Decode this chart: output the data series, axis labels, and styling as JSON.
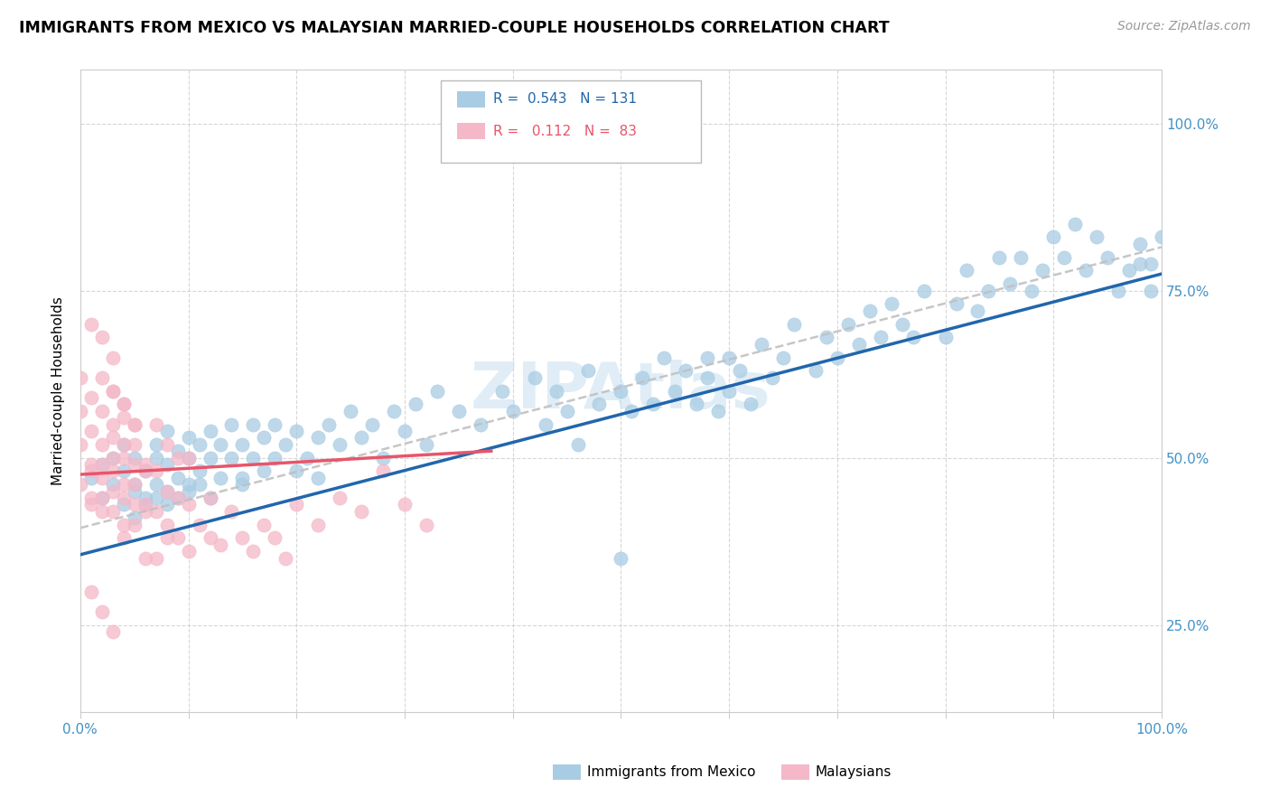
{
  "title": "IMMIGRANTS FROM MEXICO VS MALAYSIAN MARRIED-COUPLE HOUSEHOLDS CORRELATION CHART",
  "source": "Source: ZipAtlas.com",
  "ylabel": "Married-couple Households",
  "ytick_labels": [
    "25.0%",
    "50.0%",
    "75.0%",
    "100.0%"
  ],
  "ytick_values": [
    0.25,
    0.5,
    0.75,
    1.0
  ],
  "xlim": [
    0.0,
    1.0
  ],
  "ylim": [
    0.12,
    1.08
  ],
  "color_blue": "#a8cce4",
  "color_pink": "#f4b8c8",
  "color_blue_line": "#2166ac",
  "color_pink_line": "#e8556a",
  "color_gray_line": "#c0c0c0",
  "title_fontsize": 12.5,
  "source_fontsize": 10,
  "watermark": "ZIPAtlas",
  "blue_line": [
    0.0,
    0.355,
    1.0,
    0.775
  ],
  "gray_line": [
    0.0,
    0.395,
    1.0,
    0.815
  ],
  "pink_line": [
    0.0,
    0.475,
    0.38,
    0.51
  ],
  "scatter_blue_x": [
    0.01,
    0.02,
    0.02,
    0.03,
    0.03,
    0.04,
    0.04,
    0.04,
    0.05,
    0.05,
    0.05,
    0.05,
    0.06,
    0.06,
    0.06,
    0.07,
    0.07,
    0.07,
    0.07,
    0.08,
    0.08,
    0.08,
    0.08,
    0.09,
    0.09,
    0.09,
    0.1,
    0.1,
    0.1,
    0.1,
    0.11,
    0.11,
    0.11,
    0.12,
    0.12,
    0.12,
    0.13,
    0.13,
    0.14,
    0.14,
    0.15,
    0.15,
    0.15,
    0.16,
    0.16,
    0.17,
    0.17,
    0.18,
    0.18,
    0.19,
    0.2,
    0.2,
    0.21,
    0.22,
    0.22,
    0.23,
    0.24,
    0.25,
    0.26,
    0.27,
    0.28,
    0.29,
    0.3,
    0.31,
    0.32,
    0.33,
    0.35,
    0.37,
    0.39,
    0.4,
    0.42,
    0.43,
    0.44,
    0.45,
    0.46,
    0.47,
    0.48,
    0.5,
    0.5,
    0.51,
    0.52,
    0.53,
    0.54,
    0.55,
    0.56,
    0.57,
    0.58,
    0.58,
    0.59,
    0.6,
    0.6,
    0.61,
    0.62,
    0.63,
    0.64,
    0.65,
    0.66,
    0.68,
    0.69,
    0.7,
    0.71,
    0.72,
    0.73,
    0.74,
    0.75,
    0.76,
    0.77,
    0.78,
    0.8,
    0.81,
    0.82,
    0.83,
    0.84,
    0.85,
    0.86,
    0.87,
    0.88,
    0.89,
    0.9,
    0.91,
    0.92,
    0.93,
    0.94,
    0.95,
    0.96,
    0.97,
    0.98,
    0.99,
    1.0,
    0.98,
    0.99
  ],
  "scatter_blue_y": [
    0.47,
    0.44,
    0.49,
    0.46,
    0.5,
    0.43,
    0.48,
    0.52,
    0.41,
    0.46,
    0.5,
    0.45,
    0.44,
    0.48,
    0.43,
    0.46,
    0.5,
    0.44,
    0.52,
    0.45,
    0.49,
    0.43,
    0.54,
    0.47,
    0.51,
    0.44,
    0.46,
    0.5,
    0.45,
    0.53,
    0.48,
    0.52,
    0.46,
    0.5,
    0.44,
    0.54,
    0.52,
    0.47,
    0.5,
    0.55,
    0.47,
    0.52,
    0.46,
    0.5,
    0.55,
    0.48,
    0.53,
    0.5,
    0.55,
    0.52,
    0.48,
    0.54,
    0.5,
    0.53,
    0.47,
    0.55,
    0.52,
    0.57,
    0.53,
    0.55,
    0.5,
    0.57,
    0.54,
    0.58,
    0.52,
    0.6,
    0.57,
    0.55,
    0.6,
    0.57,
    0.62,
    0.55,
    0.6,
    0.57,
    0.52,
    0.63,
    0.58,
    0.35,
    0.6,
    0.57,
    0.62,
    0.58,
    0.65,
    0.6,
    0.63,
    0.58,
    0.65,
    0.62,
    0.57,
    0.65,
    0.6,
    0.63,
    0.58,
    0.67,
    0.62,
    0.65,
    0.7,
    0.63,
    0.68,
    0.65,
    0.7,
    0.67,
    0.72,
    0.68,
    0.73,
    0.7,
    0.68,
    0.75,
    0.68,
    0.73,
    0.78,
    0.72,
    0.75,
    0.8,
    0.76,
    0.8,
    0.75,
    0.78,
    0.83,
    0.8,
    0.85,
    0.78,
    0.83,
    0.8,
    0.75,
    0.78,
    0.82,
    0.79,
    0.83,
    0.79,
    0.75
  ],
  "scatter_pink_x": [
    0.0,
    0.0,
    0.0,
    0.0,
    0.01,
    0.01,
    0.01,
    0.01,
    0.01,
    0.01,
    0.02,
    0.02,
    0.02,
    0.02,
    0.02,
    0.02,
    0.02,
    0.03,
    0.03,
    0.03,
    0.03,
    0.03,
    0.03,
    0.03,
    0.03,
    0.04,
    0.04,
    0.04,
    0.04,
    0.04,
    0.04,
    0.04,
    0.04,
    0.05,
    0.05,
    0.05,
    0.05,
    0.05,
    0.05,
    0.06,
    0.06,
    0.06,
    0.06,
    0.06,
    0.07,
    0.07,
    0.07,
    0.07,
    0.08,
    0.08,
    0.08,
    0.08,
    0.09,
    0.09,
    0.09,
    0.1,
    0.1,
    0.1,
    0.11,
    0.12,
    0.12,
    0.13,
    0.14,
    0.15,
    0.16,
    0.17,
    0.18,
    0.19,
    0.2,
    0.22,
    0.24,
    0.26,
    0.28,
    0.3,
    0.32,
    0.01,
    0.02,
    0.03,
    0.04,
    0.05,
    0.01,
    0.02,
    0.03
  ],
  "scatter_pink_y": [
    0.46,
    0.52,
    0.57,
    0.62,
    0.44,
    0.49,
    0.54,
    0.59,
    0.43,
    0.48,
    0.42,
    0.47,
    0.52,
    0.57,
    0.62,
    0.44,
    0.49,
    0.45,
    0.5,
    0.55,
    0.6,
    0.42,
    0.48,
    0.53,
    0.65,
    0.38,
    0.44,
    0.5,
    0.56,
    0.4,
    0.46,
    0.52,
    0.58,
    0.4,
    0.46,
    0.52,
    0.43,
    0.49,
    0.55,
    0.43,
    0.49,
    0.35,
    0.42,
    0.48,
    0.35,
    0.42,
    0.48,
    0.55,
    0.38,
    0.45,
    0.52,
    0.4,
    0.38,
    0.44,
    0.5,
    0.36,
    0.43,
    0.5,
    0.4,
    0.38,
    0.44,
    0.37,
    0.42,
    0.38,
    0.36,
    0.4,
    0.38,
    0.35,
    0.43,
    0.4,
    0.44,
    0.42,
    0.48,
    0.43,
    0.4,
    0.7,
    0.68,
    0.6,
    0.58,
    0.55,
    0.3,
    0.27,
    0.24
  ]
}
